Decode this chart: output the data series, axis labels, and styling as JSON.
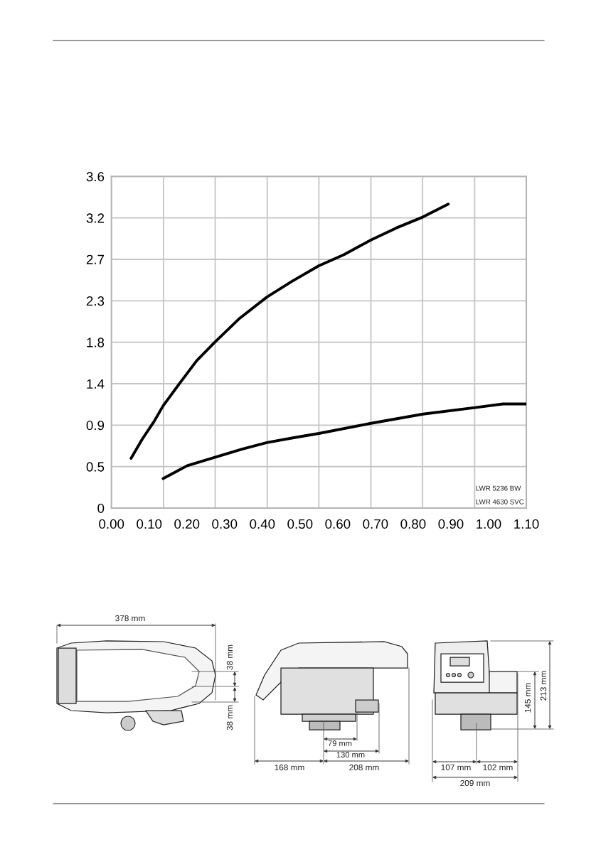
{
  "chart_data": {
    "type": "line",
    "series": [
      {
        "color": "#000000",
        "x": [
          0.052,
          0.082,
          0.113,
          0.137,
          0.182,
          0.226,
          0.274,
          0.34,
          0.412,
          0.478,
          0.55,
          0.616,
          0.688,
          0.755,
          0.826,
          0.893
        ],
        "values": [
          0.54,
          0.75,
          0.94,
          1.11,
          1.36,
          1.6,
          1.8,
          2.06,
          2.29,
          2.46,
          2.63,
          2.75,
          2.91,
          3.04,
          3.16,
          3.3
        ]
      },
      {
        "color": "#000000",
        "x": [
          0.137,
          0.201,
          0.274,
          0.346,
          0.412,
          0.478,
          0.55,
          0.688,
          0.826,
          0.964,
          1.038,
          1.1
        ],
        "values": [
          0.32,
          0.46,
          0.55,
          0.64,
          0.71,
          0.76,
          0.81,
          0.92,
          1.02,
          1.09,
          1.13,
          1.13
        ]
      }
    ],
    "line_style": "solid",
    "xlim": [
      0,
      1.1
    ],
    "xticks": [
      {
        "value": 0,
        "label": "0.00"
      },
      {
        "value": 0.1,
        "label": "0.10"
      },
      {
        "value": 0.2,
        "label": "0.20"
      },
      {
        "value": 0.3,
        "label": "0.30"
      },
      {
        "value": 0.4,
        "label": "0.40"
      },
      {
        "value": 0.5,
        "label": "0.50"
      },
      {
        "value": 0.6,
        "label": "0.60"
      },
      {
        "value": 0.7,
        "label": "0.70"
      },
      {
        "value": 0.8,
        "label": "0.80"
      },
      {
        "value": 0.9,
        "label": "0.90"
      },
      {
        "value": 1.0,
        "label": "1.00"
      },
      {
        "value": 1.1,
        "label": "1.10"
      }
    ],
    "ylim": [
      0,
      3.6
    ],
    "yticks": [
      0,
      {
        "value": 0.45,
        "label": "0.5"
      },
      0.9,
      {
        "value": 1.35,
        "label": "1.4"
      },
      1.8,
      {
        "value": 2.25,
        "label": "2.3"
      },
      2.7,
      {
        "value": 3.15,
        "label": "3.2"
      },
      3.6
    ],
    "grid": "y",
    "ref_lines": [
      {
        "axis": "x",
        "value": 0.138,
        "color": "#c4c4c4"
      },
      {
        "axis": "x",
        "value": 0.275,
        "color": "#c4c4c4"
      },
      {
        "axis": "x",
        "value": 0.413,
        "color": "#c4c4c4"
      },
      {
        "axis": "x",
        "value": 0.55,
        "color": "#c4c4c4"
      },
      {
        "axis": "x",
        "value": 0.688,
        "color": "#c4c4c4"
      },
      {
        "axis": "x",
        "value": 0.825,
        "color": "#c4c4c4"
      },
      {
        "axis": "x",
        "value": 0.963,
        "color": "#c4c4c4"
      }
    ],
    "annotations": [
      "LWR 5236 BW",
      "LWR 4630 SVC",
      "378 mm",
      "38 mm",
      "38 mm",
      "79 mm",
      "130 mm",
      "168 mm",
      "208 mm",
      "107 mm",
      "102 mm",
      "209 mm",
      "145 mm",
      "213 mm"
    ]
  }
}
